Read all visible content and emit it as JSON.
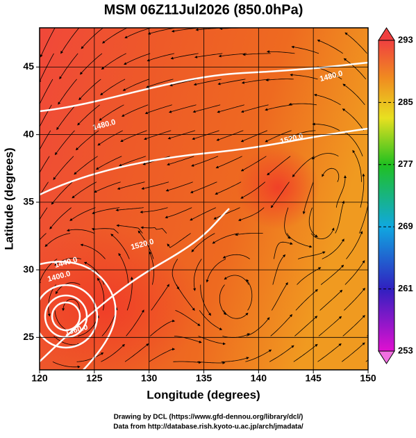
{
  "chart_data": {
    "type": "map",
    "title": "MSM 06Z11Jul2026 (850.0hPa)",
    "xlabel": "Longitude (degrees)",
    "ylabel": "Latitude  (degrees)",
    "xlim": [
      120,
      150
    ],
    "xticks": [
      120,
      125,
      130,
      135,
      140,
      145,
      150
    ],
    "ylim": [
      22.6,
      47.9
    ],
    "yticks": [
      25,
      30,
      35,
      40,
      45
    ],
    "grid": true,
    "colorbar": {
      "lim": [
        253,
        293
      ],
      "ticks": [
        253,
        261,
        269,
        277,
        285,
        293
      ]
    },
    "contour_labels": [
      "1480.0",
      "1520.0",
      "1480.0",
      "1520.0",
      "1440.0",
      "1400.0",
      "1360.0"
    ],
    "credits": [
      "Drawing by DCL (https://www.gfd-dennou.org/library/dcl/)",
      "Data from http://database.rish.kyoto-u.ac.jp/arch/jmadata/"
    ]
  }
}
